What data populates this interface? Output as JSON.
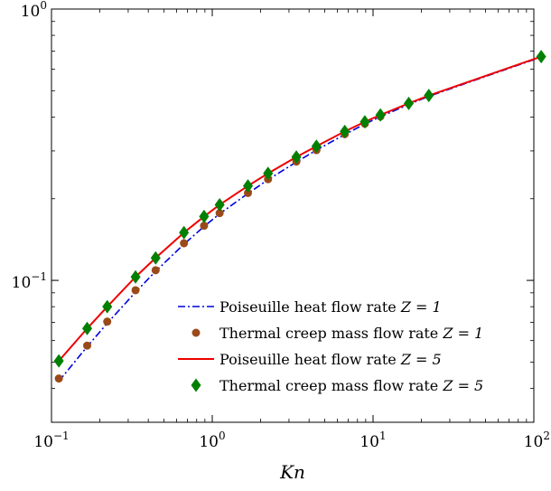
{
  "chart_data": {
    "type": "line",
    "xscale": "log",
    "yscale": "log",
    "xlim": [
      0.1,
      100
    ],
    "ylim": [
      0.03,
      1
    ],
    "xlabel": "Kn",
    "ylabel": "",
    "title": "",
    "x_ticks": [
      {
        "value": 0.1,
        "base": "10",
        "exp": "−1"
      },
      {
        "value": 1,
        "base": "10",
        "exp": "0"
      },
      {
        "value": 10,
        "base": "10",
        "exp": "1"
      },
      {
        "value": 100,
        "base": "10",
        "exp": "2"
      }
    ],
    "y_ticks": [
      {
        "value": 0.1,
        "base": "10",
        "exp": "−1"
      },
      {
        "value": 1,
        "base": "10",
        "exp": "0"
      }
    ],
    "grid": false,
    "legend_position": "bottom-right",
    "series": [
      {
        "name": "Poiseuille heat flow rate",
        "param": "Z = 1",
        "marker": "none",
        "line": "dash-dot",
        "color": "#0000dd",
        "x": [
          0.1111,
          0.1667,
          0.2222,
          0.3333,
          0.4444,
          0.6667,
          0.8889,
          1.1111,
          1.6667,
          2.2222,
          3.3333,
          4.4444,
          6.6667,
          8.8889,
          11.111,
          16.667,
          22.222,
          111.11
        ],
        "y": [
          0.0425,
          0.057,
          0.0695,
          0.0905,
          0.108,
          0.136,
          0.158,
          0.176,
          0.209,
          0.235,
          0.273,
          0.302,
          0.345,
          0.377,
          0.401,
          0.445,
          0.477,
          0.665
        ]
      },
      {
        "name": "Thermal creep mass flow rate",
        "param": "Z = 1",
        "marker": "circle",
        "line": "none",
        "color": "#9a4a1a",
        "x": [
          0.1111,
          0.1667,
          0.2222,
          0.3333,
          0.4444,
          0.6667,
          0.8889,
          1.1111,
          1.6667,
          2.2222,
          3.3333,
          4.4444,
          6.6667,
          8.8889,
          11.111
        ],
        "y": [
          0.0435,
          0.0575,
          0.0705,
          0.092,
          0.109,
          0.137,
          0.159,
          0.177,
          0.21,
          0.236,
          0.274,
          0.302,
          0.346,
          0.378,
          0.402
        ]
      },
      {
        "name": "Poiseuille heat flow rate",
        "param": "Z = 5",
        "marker": "none",
        "line": "solid",
        "color": "#ee0000",
        "x": [
          0.1111,
          0.1667,
          0.2222,
          0.3333,
          0.4444,
          0.6667,
          0.8889,
          1.1111,
          1.6667,
          2.2222,
          3.3333,
          4.4444,
          6.6667,
          8.8889,
          11.111,
          16.667,
          22.222,
          111.11
        ],
        "y": [
          0.0505,
          0.0665,
          0.08,
          0.103,
          0.121,
          0.15,
          0.172,
          0.19,
          0.223,
          0.248,
          0.285,
          0.312,
          0.354,
          0.384,
          0.407,
          0.449,
          0.48,
          0.668
        ]
      },
      {
        "name": "Thermal creep mass flow rate",
        "param": "Z = 5",
        "marker": "diamond",
        "line": "none",
        "color": "#008000",
        "x": [
          0.1111,
          0.1667,
          0.2222,
          0.3333,
          0.4444,
          0.6667,
          0.8889,
          1.1111,
          1.6667,
          2.2222,
          3.3333,
          4.4444,
          6.6667,
          8.8889,
          11.111,
          16.667,
          22.222,
          111.11
        ],
        "y": [
          0.0505,
          0.0665,
          0.08,
          0.103,
          0.121,
          0.15,
          0.172,
          0.19,
          0.223,
          0.248,
          0.285,
          0.312,
          0.354,
          0.384,
          0.407,
          0.449,
          0.48,
          0.668
        ]
      }
    ]
  }
}
